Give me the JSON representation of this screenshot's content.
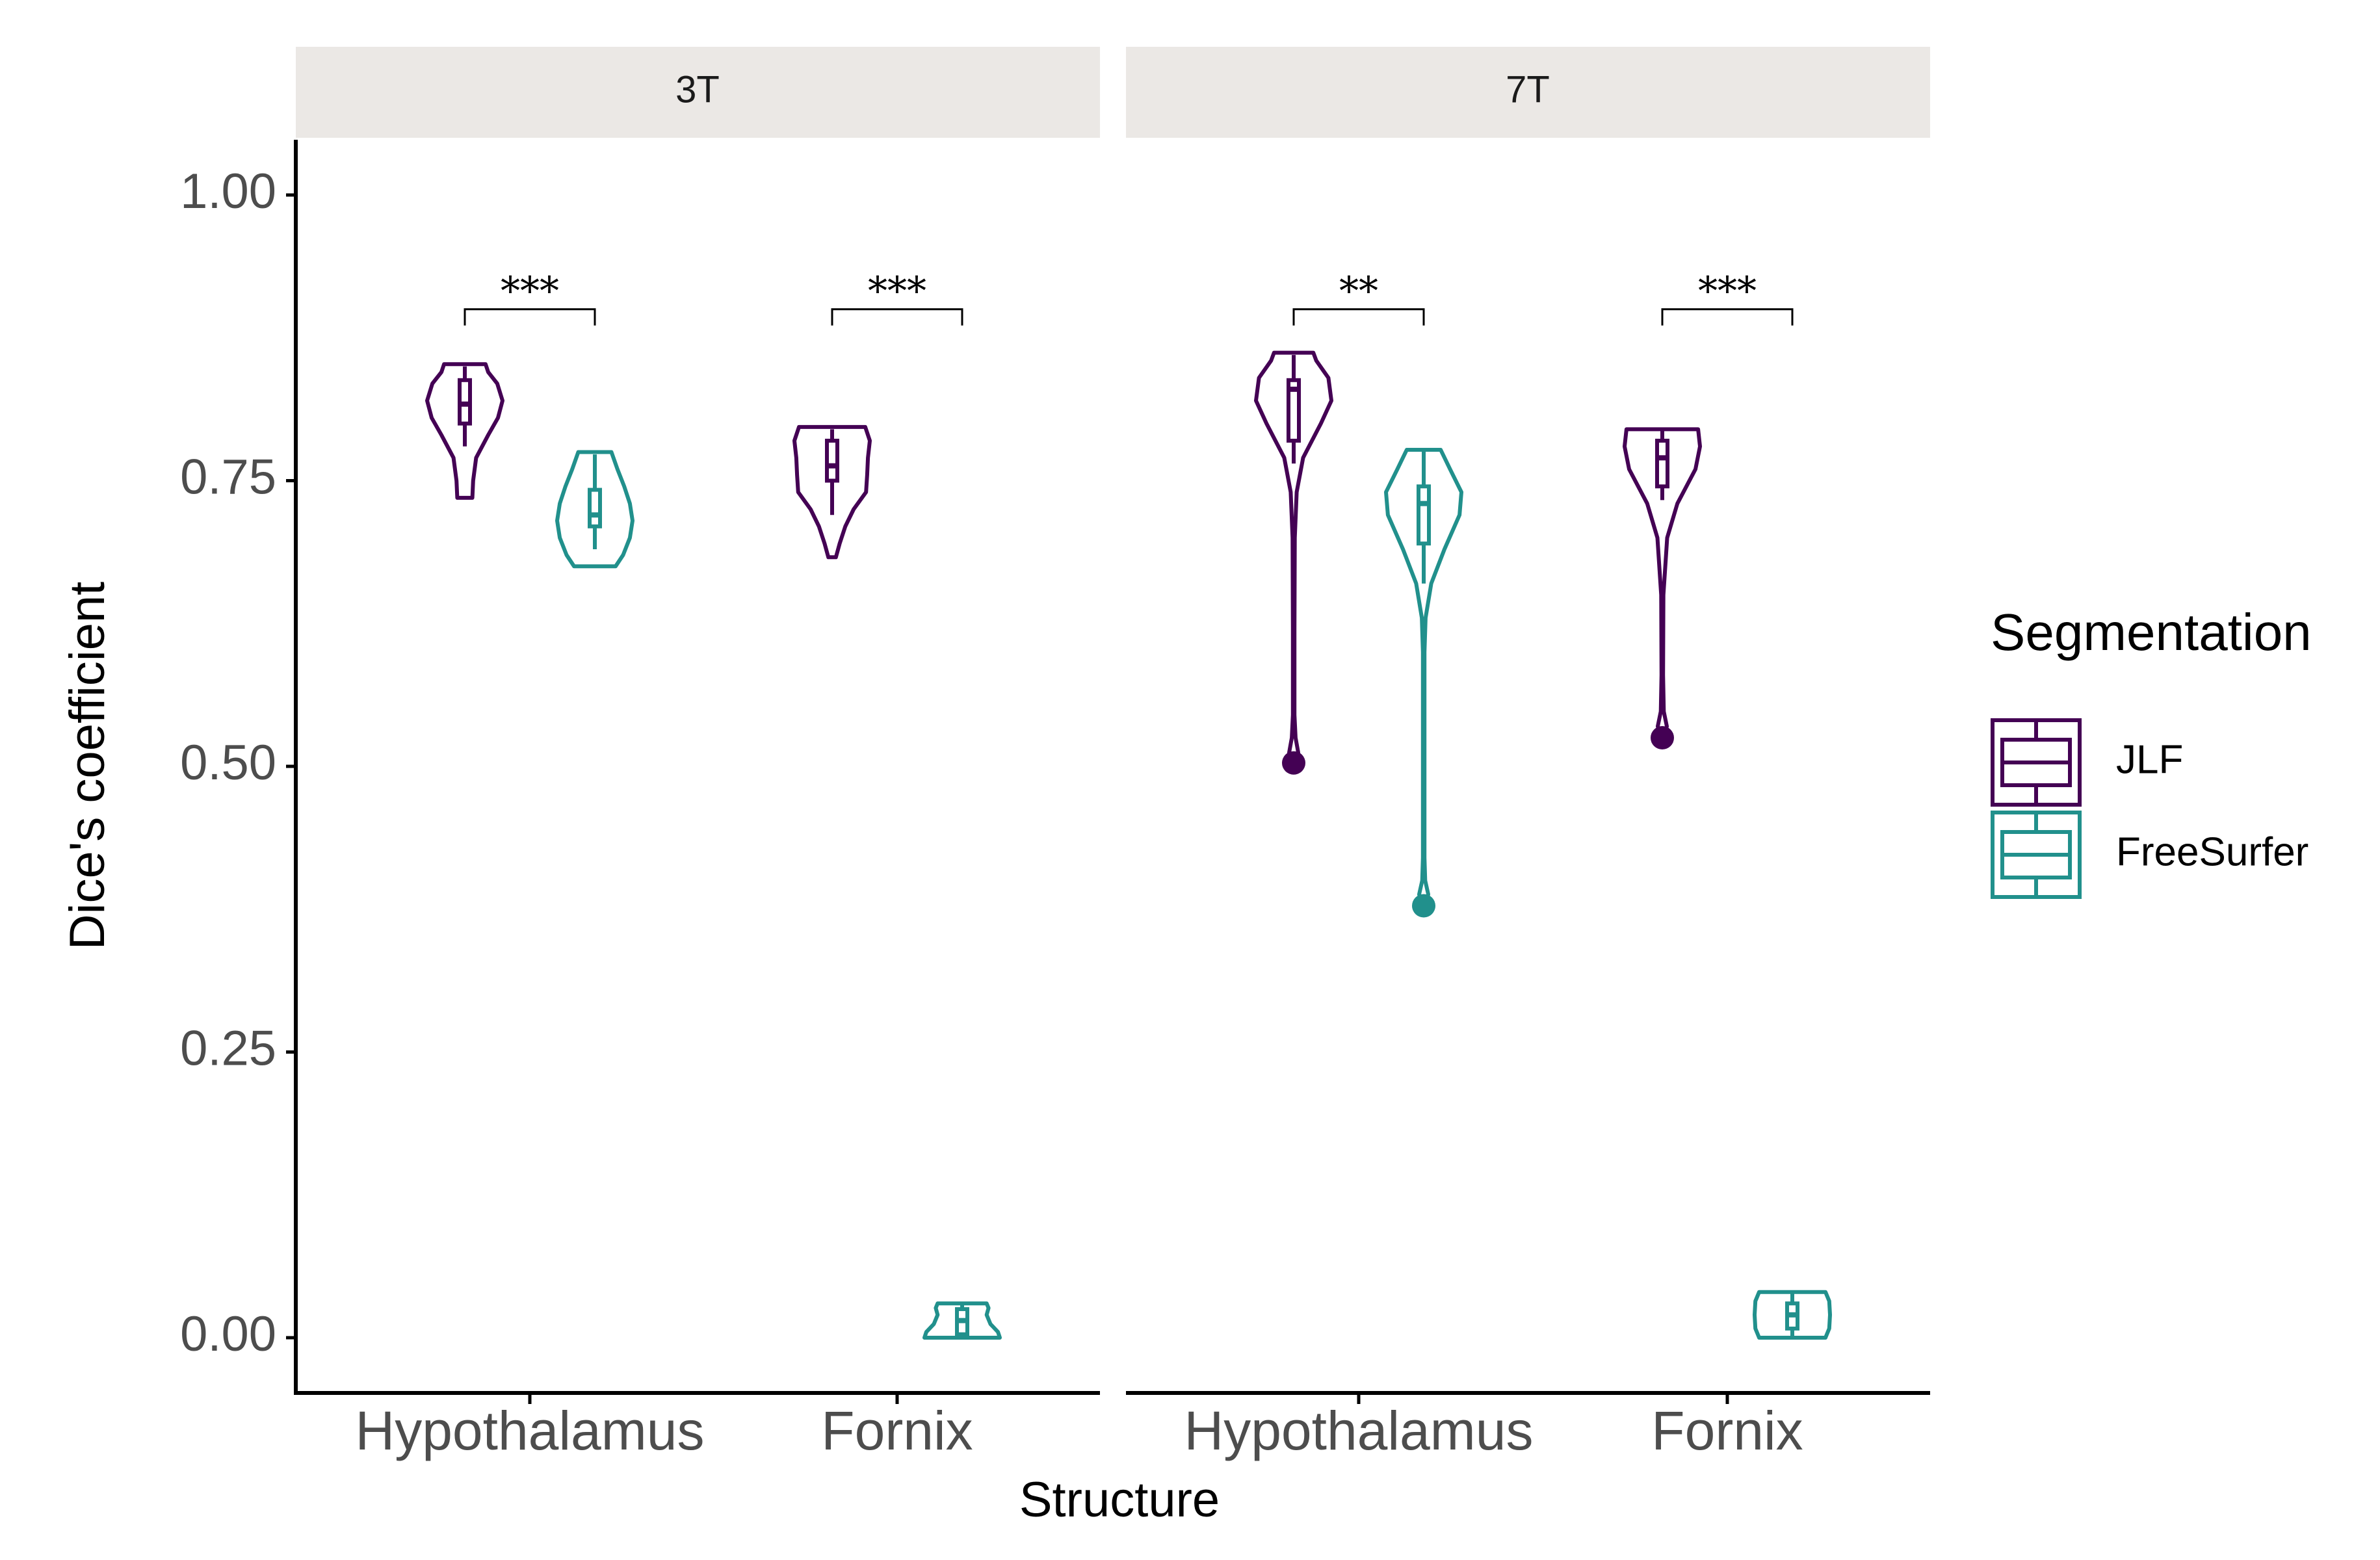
{
  "chart_data": {
    "type": "violin",
    "xlabel": "Structure",
    "ylabel": "Dice's coefficient",
    "ylim": [
      -0.05,
      1.05
    ],
    "yticks": [
      {
        "value": 0.0,
        "label": "0.00"
      },
      {
        "value": 0.25,
        "label": "0.25"
      },
      {
        "value": 0.5,
        "label": "0.50"
      },
      {
        "value": 0.75,
        "label": "0.75"
      },
      {
        "value": 1.0,
        "label": "1.00"
      }
    ],
    "categories": [
      "Hypothalamus",
      "Fornix"
    ],
    "facets": [
      {
        "label": "3T",
        "groups": [
          {
            "category": "Hypothalamus",
            "significance": "***",
            "sig_y": 0.9,
            "violins": [
              {
                "series": "JLF",
                "min": 0.735,
                "max": 0.852,
                "q1": 0.8,
                "median": 0.817,
                "q3": 0.838,
                "whisker_low": 0.78,
                "whisker_high": 0.85,
                "profile": [
                  [
                    0.735,
                    0.2
                  ],
                  [
                    0.75,
                    0.22
                  ],
                  [
                    0.77,
                    0.3
                  ],
                  [
                    0.79,
                    0.62
                  ],
                  [
                    0.805,
                    0.88
                  ],
                  [
                    0.82,
                    1.0
                  ],
                  [
                    0.835,
                    0.86
                  ],
                  [
                    0.845,
                    0.62
                  ],
                  [
                    0.852,
                    0.55
                  ]
                ]
              },
              {
                "series": "FreeSurfer",
                "min": 0.675,
                "max": 0.775,
                "q1": 0.71,
                "median": 0.72,
                "q3": 0.742,
                "whisker_low": 0.69,
                "whisker_high": 0.773,
                "profile": [
                  [
                    0.675,
                    0.55
                  ],
                  [
                    0.685,
                    0.75
                  ],
                  [
                    0.7,
                    0.93
                  ],
                  [
                    0.715,
                    1.0
                  ],
                  [
                    0.73,
                    0.93
                  ],
                  [
                    0.745,
                    0.78
                  ],
                  [
                    0.76,
                    0.6
                  ],
                  [
                    0.775,
                    0.44
                  ]
                ]
              }
            ]
          },
          {
            "category": "Fornix",
            "significance": "***",
            "sig_y": 0.9,
            "violins": [
              {
                "series": "JLF",
                "min": 0.683,
                "max": 0.797,
                "q1": 0.75,
                "median": 0.763,
                "q3": 0.785,
                "whisker_low": 0.72,
                "whisker_high": 0.795,
                "profile": [
                  [
                    0.683,
                    0.1
                  ],
                  [
                    0.695,
                    0.2
                  ],
                  [
                    0.71,
                    0.35
                  ],
                  [
                    0.725,
                    0.57
                  ],
                  [
                    0.74,
                    0.9
                  ],
                  [
                    0.755,
                    0.93
                  ],
                  [
                    0.77,
                    0.95
                  ],
                  [
                    0.785,
                    1.0
                  ],
                  [
                    0.797,
                    0.88
                  ]
                ]
              },
              {
                "series": "FreeSurfer",
                "min": 0.0,
                "max": 0.03,
                "q1": 0.003,
                "median": 0.015,
                "q3": 0.025,
                "whisker_low": 0.0,
                "whisker_high": 0.03,
                "profile": [
                  [
                    0.0,
                    1.0
                  ],
                  [
                    0.005,
                    0.95
                  ],
                  [
                    0.012,
                    0.75
                  ],
                  [
                    0.02,
                    0.65
                  ],
                  [
                    0.026,
                    0.7
                  ],
                  [
                    0.03,
                    0.65
                  ]
                ]
              }
            ]
          }
        ]
      },
      {
        "label": "7T",
        "groups": [
          {
            "category": "Hypothalamus",
            "significance": "**",
            "sig_y": 0.9,
            "violins": [
              {
                "series": "JLF",
                "min": 0.503,
                "max": 0.862,
                "q1": 0.785,
                "median": 0.83,
                "q3": 0.838,
                "whisker_low": 0.765,
                "whisker_high": 0.86,
                "outliers": [
                  0.503
                ],
                "profile": [
                  [
                    0.503,
                    0.03
                  ],
                  [
                    0.512,
                    0.12
                  ],
                  [
                    0.525,
                    0.05
                  ],
                  [
                    0.545,
                    0.02
                  ],
                  [
                    0.62,
                    0.02
                  ],
                  [
                    0.7,
                    0.03
                  ],
                  [
                    0.74,
                    0.08
                  ],
                  [
                    0.77,
                    0.25
                  ],
                  [
                    0.8,
                    0.72
                  ],
                  [
                    0.82,
                    1.0
                  ],
                  [
                    0.84,
                    0.92
                  ],
                  [
                    0.855,
                    0.6
                  ],
                  [
                    0.862,
                    0.52
                  ]
                ]
              },
              {
                "series": "FreeSurfer",
                "min": 0.378,
                "max": 0.777,
                "q1": 0.695,
                "median": 0.73,
                "q3": 0.745,
                "whisker_low": 0.66,
                "whisker_high": 0.776,
                "outliers": [
                  0.378
                ],
                "profile": [
                  [
                    0.378,
                    0.05
                  ],
                  [
                    0.388,
                    0.12
                  ],
                  [
                    0.4,
                    0.04
                  ],
                  [
                    0.42,
                    0.02
                  ],
                  [
                    0.5,
                    0.02
                  ],
                  [
                    0.6,
                    0.02
                  ],
                  [
                    0.63,
                    0.05
                  ],
                  [
                    0.66,
                    0.2
                  ],
                  [
                    0.69,
                    0.55
                  ],
                  [
                    0.72,
                    0.95
                  ],
                  [
                    0.74,
                    1.0
                  ],
                  [
                    0.76,
                    0.7
                  ],
                  [
                    0.777,
                    0.45
                  ]
                ]
              }
            ]
          },
          {
            "category": "Fornix",
            "significance": "***",
            "sig_y": 0.9,
            "violins": [
              {
                "series": "JLF",
                "min": 0.525,
                "max": 0.795,
                "q1": 0.745,
                "median": 0.77,
                "q3": 0.785,
                "whisker_low": 0.733,
                "whisker_high": 0.795,
                "outliers": [
                  0.525
                ],
                "profile": [
                  [
                    0.525,
                    0.04
                  ],
                  [
                    0.535,
                    0.12
                  ],
                  [
                    0.548,
                    0.04
                  ],
                  [
                    0.58,
                    0.02
                  ],
                  [
                    0.65,
                    0.03
                  ],
                  [
                    0.7,
                    0.13
                  ],
                  [
                    0.73,
                    0.4
                  ],
                  [
                    0.76,
                    0.88
                  ],
                  [
                    0.78,
                    1.0
                  ],
                  [
                    0.795,
                    0.95
                  ]
                ]
              },
              {
                "series": "FreeSurfer",
                "min": 0.0,
                "max": 0.04,
                "q1": 0.008,
                "median": 0.02,
                "q3": 0.03,
                "whisker_low": 0.0,
                "whisker_high": 0.04,
                "profile": [
                  [
                    0.0,
                    0.88
                  ],
                  [
                    0.008,
                    0.98
                  ],
                  [
                    0.02,
                    1.0
                  ],
                  [
                    0.032,
                    0.98
                  ],
                  [
                    0.04,
                    0.88
                  ]
                ]
              }
            ]
          }
        ]
      }
    ],
    "legend": {
      "title": "Segmentation",
      "position": "right",
      "entries": [
        {
          "name": "JLF",
          "color": "#440154"
        },
        {
          "name": "FreeSurfer",
          "color": "#21908C"
        }
      ]
    },
    "colors": {
      "JLF": "#440154",
      "FreeSurfer": "#21908C",
      "strip": "#EBE8E5"
    }
  }
}
